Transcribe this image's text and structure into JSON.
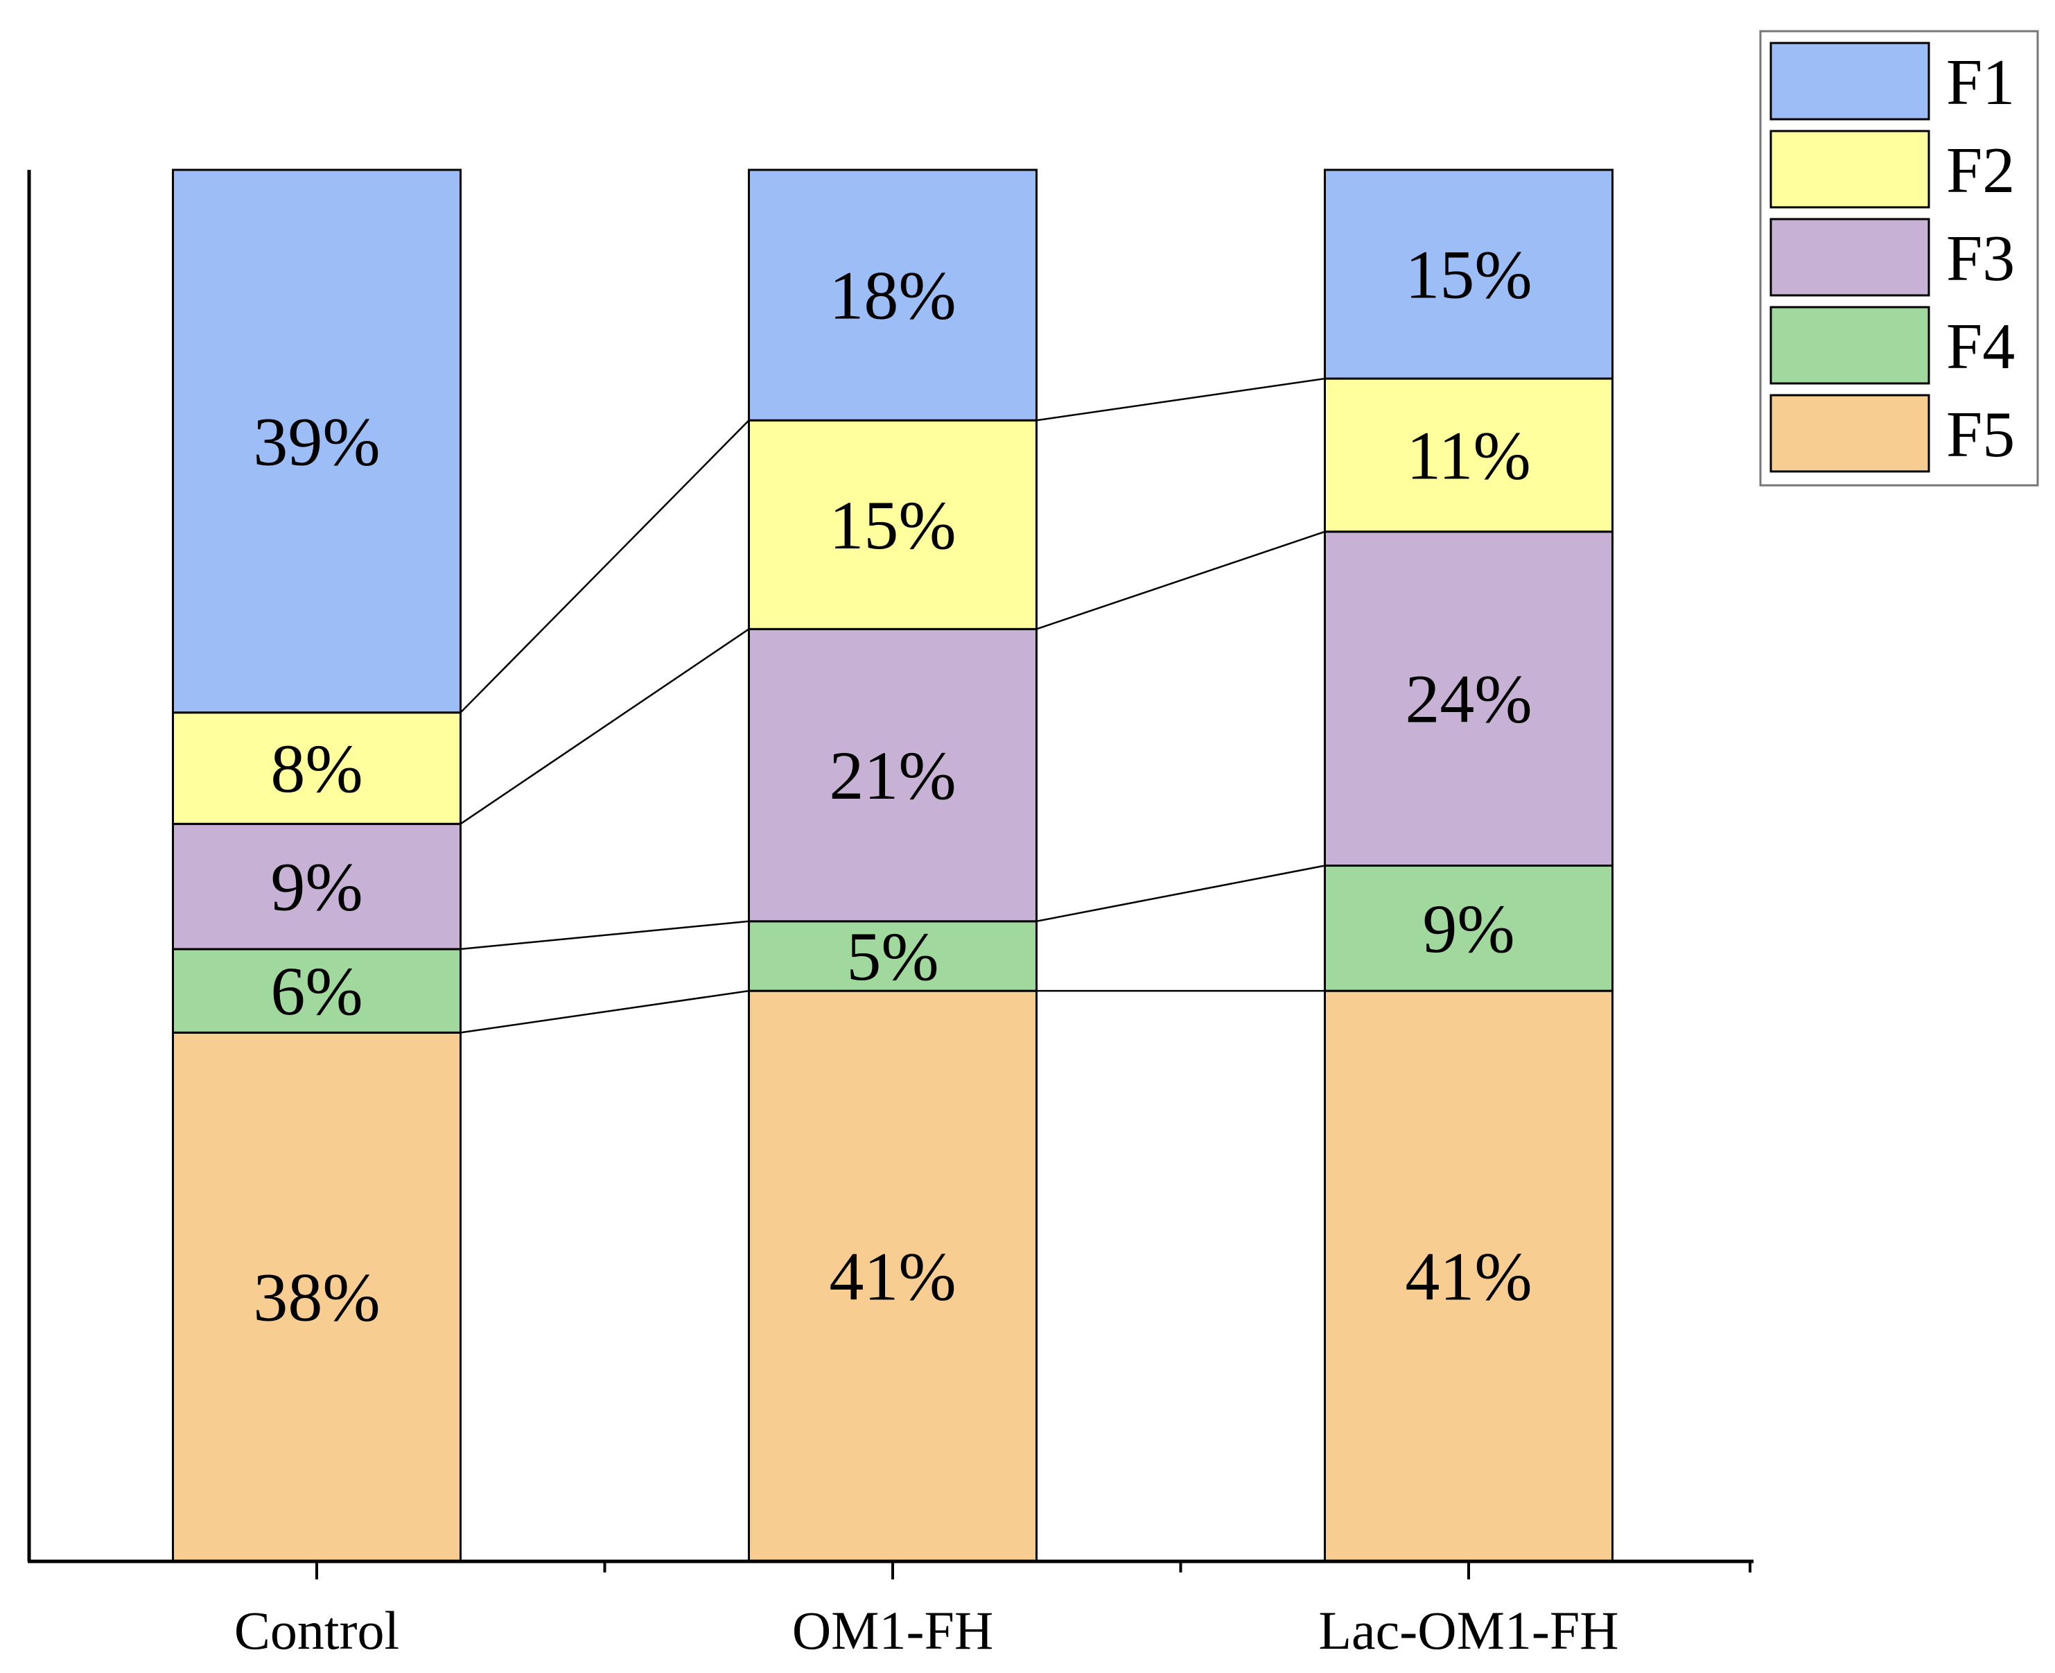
{
  "chart_data": {
    "type": "bar",
    "stacked": true,
    "percent": true,
    "title": "",
    "xlabel": "",
    "ylabel": "",
    "ylim": [
      0,
      100
    ],
    "categories": [
      "Control",
      "OM1-FH",
      "Lac-OM1-FH"
    ],
    "series": [
      {
        "name": "F1",
        "color": "#9dbdf6",
        "values": [
          39,
          18,
          15
        ],
        "labels": [
          "39%",
          "18%",
          "15%"
        ]
      },
      {
        "name": "F2",
        "color": "#ffff9e",
        "values": [
          8,
          15,
          11
        ],
        "labels": [
          "8%",
          "15%",
          "11%"
        ]
      },
      {
        "name": "F3",
        "color": "#c7b2d5",
        "values": [
          9,
          21,
          24
        ],
        "labels": [
          "9%",
          "21%",
          "24%"
        ]
      },
      {
        "name": "F4",
        "color": "#a0d89d",
        "values": [
          6,
          5,
          9
        ],
        "labels": [
          "6%",
          "5%",
          "9%"
        ]
      },
      {
        "name": "F5",
        "color": "#f8cd92",
        "values": [
          38,
          41,
          41
        ],
        "labels": [
          "38%",
          "41%",
          "41%"
        ]
      }
    ],
    "stack_order_top_to_bottom": [
      "F1",
      "F2",
      "F3",
      "F4",
      "F5"
    ],
    "connector_lines": true,
    "legend": {
      "position": "top-right",
      "entries": [
        "F1",
        "F2",
        "F3",
        "F4",
        "F5"
      ]
    },
    "grid": false
  }
}
